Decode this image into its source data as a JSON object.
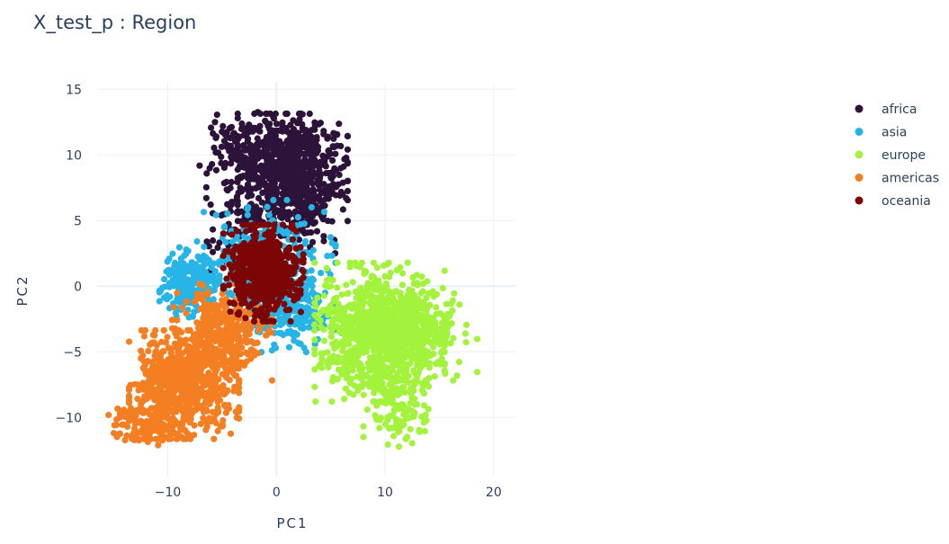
{
  "chart_data": {
    "type": "scatter",
    "title": "X_test_p : Region",
    "xlabel": "PC1",
    "ylabel": "PC2",
    "xlim": [
      -16.5,
      22
    ],
    "ylim": [
      -14.5,
      15.5
    ],
    "xticks": [
      -10,
      0,
      10,
      20
    ],
    "yticks": [
      -10,
      -5,
      0,
      5,
      10,
      15
    ],
    "xtick_labels": [
      "−10",
      "0",
      "10",
      "20"
    ],
    "ytick_labels": [
      "−10",
      "−5",
      "0",
      "5",
      "10",
      "15"
    ],
    "grid": true,
    "legend_position": "top-right",
    "series": [
      {
        "name": "africa",
        "color": "#2d1339",
        "clusters": [
          {
            "cx": 1.5,
            "cy": 9,
            "sx": 2.2,
            "sy": 1.8,
            "n": 700
          },
          {
            "cx": -2.5,
            "cy": 10.5,
            "sx": 2.0,
            "sy": 1.2,
            "n": 150
          },
          {
            "cx": -3,
            "cy": 5,
            "sx": 1.5,
            "sy": 2.0,
            "n": 140
          },
          {
            "cx": 2,
            "cy": 5.5,
            "sx": 1.8,
            "sy": 1.3,
            "n": 110
          }
        ]
      },
      {
        "name": "asia",
        "color": "#27b4e6",
        "clusters": [
          {
            "cx": -8,
            "cy": 0.2,
            "sx": 1.2,
            "sy": 1.2,
            "n": 260
          },
          {
            "cx": -1,
            "cy": 1.5,
            "sx": 2.8,
            "sy": 2.2,
            "n": 320
          },
          {
            "cx": 1.5,
            "cy": -1.8,
            "sx": 2.0,
            "sy": 1.4,
            "n": 180
          }
        ]
      },
      {
        "name": "europe",
        "color": "#a3f33c",
        "clusters": [
          {
            "cx": 9.5,
            "cy": -3.5,
            "sx": 2.6,
            "sy": 2.3,
            "n": 950
          },
          {
            "cx": 12.5,
            "cy": -3.5,
            "sx": 2.6,
            "sy": 1.6,
            "n": 250
          },
          {
            "cx": 11,
            "cy": -9,
            "sx": 1.3,
            "sy": 1.4,
            "n": 120
          }
        ]
      },
      {
        "name": "americas",
        "color": "#f47f22",
        "clusters": [
          {
            "cx": -8.5,
            "cy": -7.5,
            "sx": 2.2,
            "sy": 1.8,
            "n": 750
          },
          {
            "cx": -5,
            "cy": -3.5,
            "sx": 2.0,
            "sy": 1.6,
            "n": 330
          },
          {
            "cx": -12,
            "cy": -10.5,
            "sx": 1.5,
            "sy": 0.7,
            "n": 130
          }
        ]
      },
      {
        "name": "oceania",
        "color": "#7c0605",
        "clusters": [
          {
            "cx": -1.2,
            "cy": 1.0,
            "sx": 1.6,
            "sy": 1.6,
            "n": 650
          }
        ]
      }
    ]
  }
}
